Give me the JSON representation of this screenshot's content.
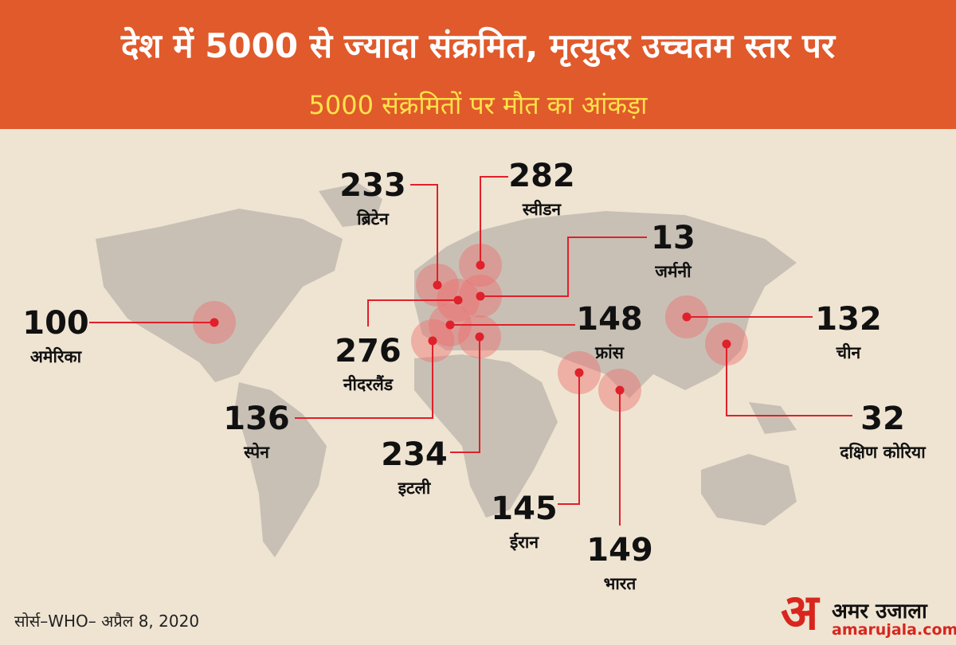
{
  "header": {
    "title": "देश में 5000 से ज्यादा संक्रमित, मृत्युदर उच्चतम स्तर पर",
    "subtitle": "5000 संक्रमितों पर मौत का आंकड़ा"
  },
  "countries": [
    {
      "value": 100,
      "name": "अमेरिका"
    },
    {
      "value": 233,
      "name": "ब्रिटेन"
    },
    {
      "value": 282,
      "name": "स्वीडन"
    },
    {
      "value": 13,
      "name": "जर्मनी"
    },
    {
      "value": 276,
      "name": "नीदरलैंड"
    },
    {
      "value": 148,
      "name": "फ्रांस"
    },
    {
      "value": 132,
      "name": "चीन"
    },
    {
      "value": 32,
      "name": "दक्षिण कोरिया"
    },
    {
      "value": 136,
      "name": "स्पेन"
    },
    {
      "value": 234,
      "name": "इटली"
    },
    {
      "value": 145,
      "name": "ईरान"
    },
    {
      "value": 149,
      "name": "भारत"
    }
  ],
  "footer": {
    "source": "सोर्स–WHO– अप्रैल 8, 2020"
  },
  "logo": {
    "mark": "अ",
    "name": "अमर उजाला",
    "url": "amarujala.com"
  }
}
